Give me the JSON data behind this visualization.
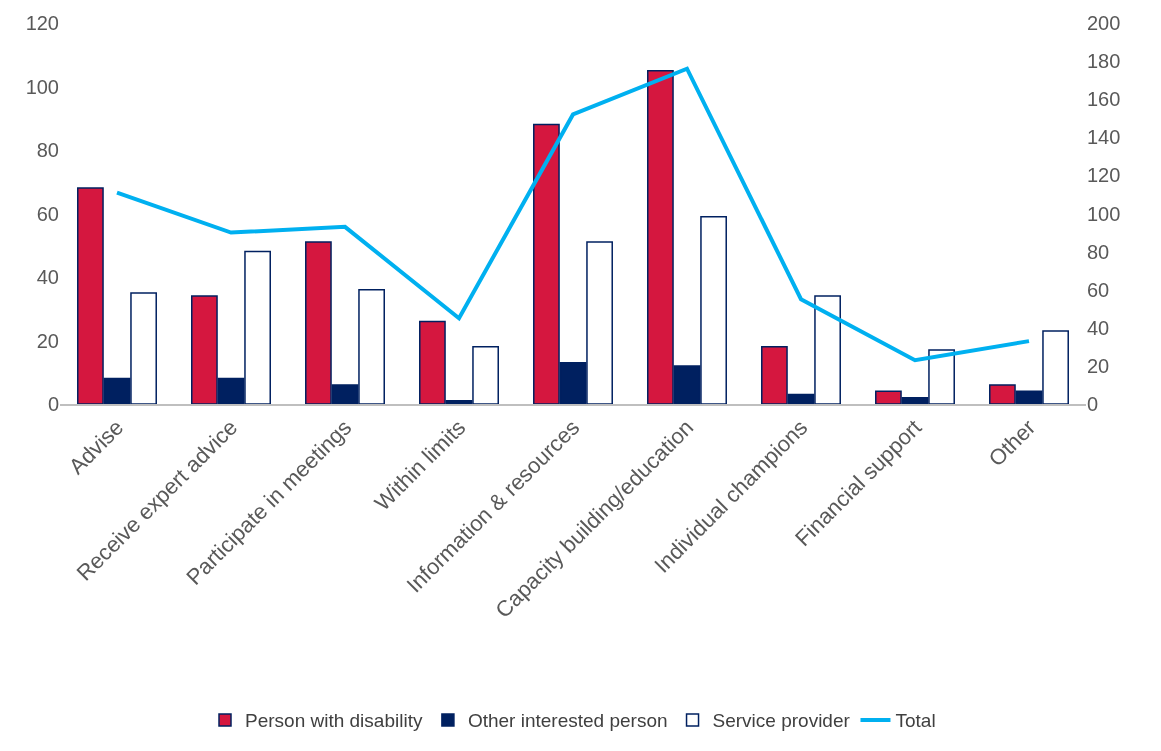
{
  "chart_data": {
    "type": "bar",
    "categories": [
      "Advise",
      "Receive expert advice",
      "Participate in meetings",
      "Within limits",
      "Information & resources",
      "Capacity building/education",
      "Individual champions",
      "Financial support",
      "Other"
    ],
    "series": [
      {
        "name": "Person with disability",
        "color": "#d5173f",
        "values": [
          68,
          34,
          51,
          26,
          88,
          105,
          18,
          4,
          6
        ]
      },
      {
        "name": "Other interested person",
        "color": "#002060",
        "values": [
          8,
          8,
          6,
          1,
          13,
          12,
          3,
          2,
          4
        ]
      },
      {
        "name": "Service provider",
        "color": "#ffffff",
        "values": [
          35,
          48,
          36,
          18,
          51,
          59,
          34,
          17,
          23
        ]
      },
      {
        "name": "Total",
        "type": "line",
        "axis": "y2",
        "color": "#00b0f0",
        "values": [
          111,
          90,
          93,
          45,
          152,
          176,
          55,
          23,
          33
        ]
      }
    ],
    "ylim": [
      0,
      120
    ],
    "yticks": [
      0,
      20,
      40,
      60,
      80,
      100,
      120
    ],
    "y2lim": [
      0,
      200
    ],
    "y2ticks": [
      0,
      20,
      40,
      60,
      80,
      100,
      120,
      140,
      160,
      180,
      200
    ],
    "legend": "bottom"
  }
}
